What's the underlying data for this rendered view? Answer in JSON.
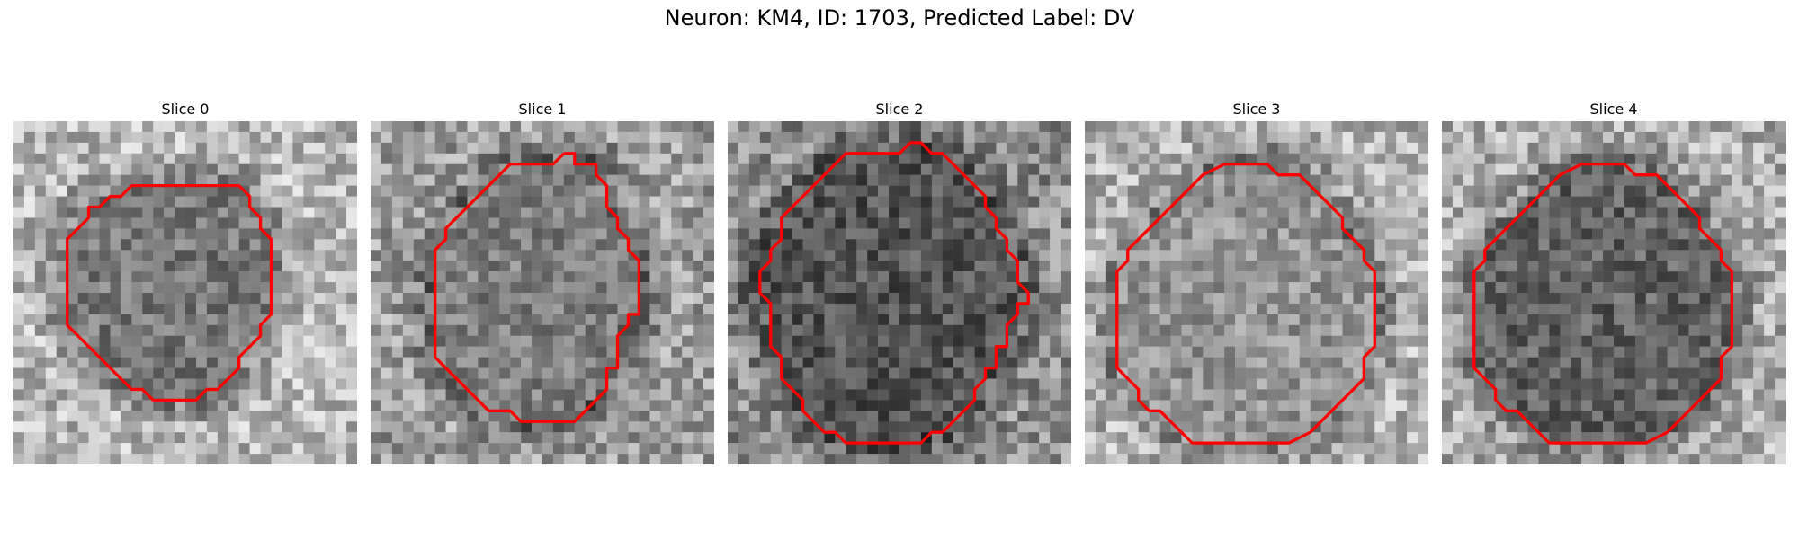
{
  "figure": {
    "title": "Neuron: KM4, ID: 1703, Predicted Label: DV",
    "contour_color": "#ff0000"
  },
  "panels": [
    {
      "title": "Slice 0",
      "contour": [
        [
          15,
          6
        ],
        [
          21,
          6
        ],
        [
          22,
          7
        ],
        [
          22,
          8
        ],
        [
          23,
          9
        ],
        [
          23,
          10
        ],
        [
          24,
          11
        ],
        [
          24,
          18
        ],
        [
          23,
          19
        ],
        [
          23,
          20
        ],
        [
          22,
          21
        ],
        [
          21,
          22
        ],
        [
          21,
          23
        ],
        [
          20,
          24
        ],
        [
          19,
          25
        ],
        [
          18,
          25
        ],
        [
          17,
          26
        ],
        [
          13,
          26
        ],
        [
          12,
          25
        ],
        [
          11,
          25
        ],
        [
          10,
          24
        ],
        [
          9,
          23
        ],
        [
          8,
          22
        ],
        [
          7,
          21
        ],
        [
          6,
          20
        ],
        [
          5,
          19
        ],
        [
          5,
          11
        ],
        [
          6,
          10
        ],
        [
          7,
          9
        ],
        [
          7,
          8
        ],
        [
          8,
          8
        ],
        [
          9,
          7
        ],
        [
          10,
          7
        ],
        [
          11,
          6
        ],
        [
          15,
          6
        ]
      ]
    },
    {
      "title": "Slice 1",
      "contour": [
        [
          18,
          3
        ],
        [
          19,
          3
        ],
        [
          19,
          4
        ],
        [
          21,
          4
        ],
        [
          21,
          5
        ],
        [
          22,
          6
        ],
        [
          22,
          8
        ],
        [
          23,
          9
        ],
        [
          23,
          10
        ],
        [
          24,
          11
        ],
        [
          24,
          12
        ],
        [
          25,
          13
        ],
        [
          25,
          18
        ],
        [
          24,
          18
        ],
        [
          24,
          19
        ],
        [
          23,
          20
        ],
        [
          23,
          23
        ],
        [
          22,
          23
        ],
        [
          22,
          25
        ],
        [
          21,
          26
        ],
        [
          20,
          27
        ],
        [
          19,
          28
        ],
        [
          14,
          28
        ],
        [
          13,
          27
        ],
        [
          11,
          27
        ],
        [
          10,
          26
        ],
        [
          9,
          25
        ],
        [
          8,
          24
        ],
        [
          7,
          23
        ],
        [
          6,
          22
        ],
        [
          6,
          12
        ],
        [
          7,
          11
        ],
        [
          7,
          10
        ],
        [
          8,
          9
        ],
        [
          9,
          8
        ],
        [
          10,
          7
        ],
        [
          11,
          6
        ],
        [
          12,
          5
        ],
        [
          13,
          4
        ],
        [
          17,
          4
        ],
        [
          18,
          3
        ]
      ]
    },
    {
      "title": "Slice 2",
      "contour": [
        [
          17,
          2
        ],
        [
          18,
          2
        ],
        [
          19,
          3
        ],
        [
          20,
          3
        ],
        [
          21,
          4
        ],
        [
          22,
          5
        ],
        [
          23,
          6
        ],
        [
          24,
          7
        ],
        [
          24,
          8
        ],
        [
          25,
          9
        ],
        [
          25,
          10
        ],
        [
          26,
          11
        ],
        [
          26,
          12
        ],
        [
          27,
          13
        ],
        [
          27,
          15
        ],
        [
          28,
          16
        ],
        [
          28,
          17
        ],
        [
          27,
          17
        ],
        [
          27,
          18
        ],
        [
          26,
          19
        ],
        [
          26,
          21
        ],
        [
          25,
          21
        ],
        [
          25,
          23
        ],
        [
          24,
          23
        ],
        [
          24,
          24
        ],
        [
          23,
          25
        ],
        [
          23,
          26
        ],
        [
          22,
          27
        ],
        [
          21,
          28
        ],
        [
          20,
          29
        ],
        [
          19,
          29
        ],
        [
          18,
          30
        ],
        [
          11,
          30
        ],
        [
          10,
          29
        ],
        [
          9,
          29
        ],
        [
          8,
          28
        ],
        [
          7,
          27
        ],
        [
          7,
          26
        ],
        [
          6,
          25
        ],
        [
          5,
          24
        ],
        [
          5,
          22
        ],
        [
          4,
          21
        ],
        [
          4,
          17
        ],
        [
          3,
          16
        ],
        [
          3,
          14
        ],
        [
          4,
          13
        ],
        [
          4,
          12
        ],
        [
          5,
          11
        ],
        [
          5,
          9
        ],
        [
          6,
          8
        ],
        [
          7,
          7
        ],
        [
          8,
          6
        ],
        [
          9,
          5
        ],
        [
          10,
          4
        ],
        [
          11,
          3
        ],
        [
          16,
          3
        ],
        [
          17,
          2
        ]
      ]
    },
    {
      "title": "Slice 3",
      "contour": [
        [
          14,
          4
        ],
        [
          17,
          4
        ],
        [
          18,
          5
        ],
        [
          20,
          5
        ],
        [
          21,
          6
        ],
        [
          22,
          7
        ],
        [
          23,
          8
        ],
        [
          24,
          9
        ],
        [
          24,
          10
        ],
        [
          25,
          11
        ],
        [
          26,
          12
        ],
        [
          26,
          13
        ],
        [
          27,
          14
        ],
        [
          27,
          21
        ],
        [
          26,
          22
        ],
        [
          26,
          24
        ],
        [
          25,
          25
        ],
        [
          24,
          26
        ],
        [
          23,
          27
        ],
        [
          22,
          28
        ],
        [
          21,
          29
        ],
        [
          19,
          30
        ],
        [
          10,
          30
        ],
        [
          9,
          29
        ],
        [
          8,
          28
        ],
        [
          7,
          27
        ],
        [
          6,
          27
        ],
        [
          5,
          26
        ],
        [
          5,
          25
        ],
        [
          4,
          24
        ],
        [
          3,
          23
        ],
        [
          3,
          20
        ],
        [
          3,
          14
        ],
        [
          4,
          13
        ],
        [
          4,
          12
        ],
        [
          5,
          11
        ],
        [
          6,
          10
        ],
        [
          7,
          9
        ],
        [
          8,
          8
        ],
        [
          9,
          7
        ],
        [
          10,
          6
        ],
        [
          11,
          5
        ],
        [
          13,
          4
        ],
        [
          14,
          4
        ]
      ]
    },
    {
      "title": "Slice 4",
      "contour": [
        [
          15,
          4
        ],
        [
          16,
          4
        ],
        [
          17,
          4
        ],
        [
          18,
          5
        ],
        [
          19,
          5
        ],
        [
          20,
          5
        ],
        [
          21,
          6
        ],
        [
          22,
          7
        ],
        [
          23,
          8
        ],
        [
          24,
          9
        ],
        [
          24,
          10
        ],
        [
          25,
          11
        ],
        [
          26,
          12
        ],
        [
          26,
          13
        ],
        [
          27,
          14
        ],
        [
          27,
          21
        ],
        [
          26,
          22
        ],
        [
          26,
          24
        ],
        [
          25,
          25
        ],
        [
          24,
          26
        ],
        [
          23,
          27
        ],
        [
          22,
          28
        ],
        [
          21,
          29
        ],
        [
          19,
          30
        ],
        [
          10,
          30
        ],
        [
          9,
          29
        ],
        [
          8,
          28
        ],
        [
          7,
          27
        ],
        [
          6,
          27
        ],
        [
          5,
          26
        ],
        [
          5,
          25
        ],
        [
          4,
          24
        ],
        [
          3,
          23
        ],
        [
          3,
          20
        ],
        [
          3,
          14
        ],
        [
          4,
          13
        ],
        [
          4,
          12
        ],
        [
          5,
          11
        ],
        [
          6,
          10
        ],
        [
          7,
          9
        ],
        [
          8,
          8
        ],
        [
          9,
          7
        ],
        [
          10,
          6
        ],
        [
          11,
          5
        ],
        [
          13,
          4
        ],
        [
          15,
          4
        ]
      ]
    }
  ]
}
